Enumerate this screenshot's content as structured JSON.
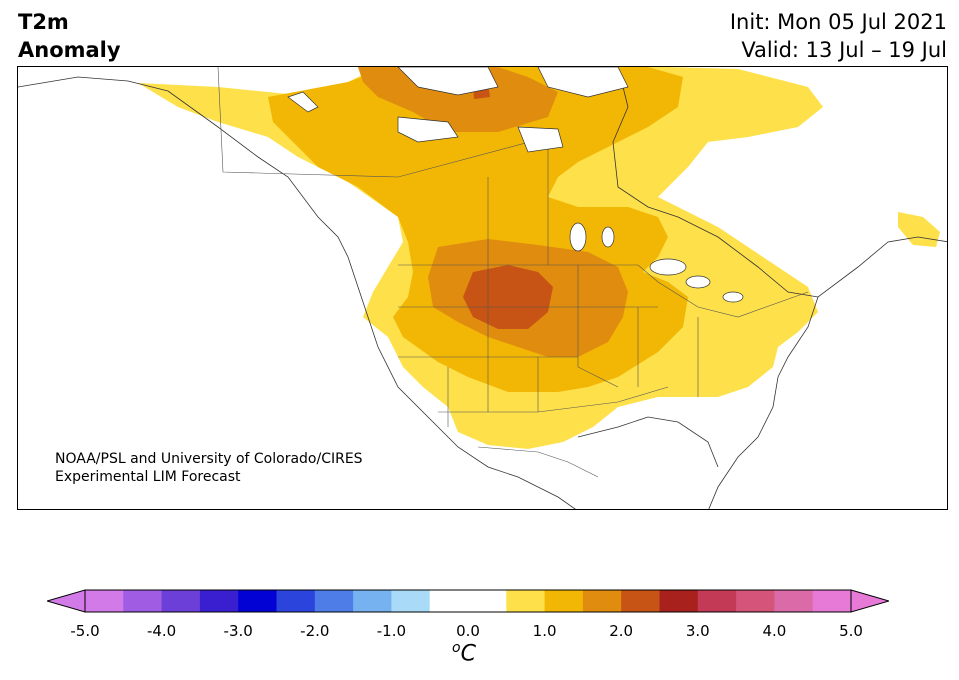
{
  "header": {
    "title_line1": "T2m",
    "title_line2": "Anomaly",
    "init": "Init: Mon 05 Jul 2021",
    "valid": "Valid: 13 Jul – 19 Jul"
  },
  "credit": {
    "line1": "NOAA/PSL and University of Colorado/CIRES",
    "line2": "Experimental LIM Forecast"
  },
  "colorbar": {
    "unit": "C",
    "unit_sup": "o",
    "ticks": [
      "-5.0",
      "-4.0",
      "-3.0",
      "-2.0",
      "-1.0",
      "0.0",
      "1.0",
      "2.0",
      "3.0",
      "4.0",
      "5.0"
    ],
    "colors": [
      "#d17ae8",
      "#a05ce3",
      "#6b3fd8",
      "#3a1fd1",
      "#0202d4",
      "#2b44dc",
      "#4e7de8",
      "#77b2f0",
      "#a9dbf8",
      "#ffffff",
      "#ffffff",
      "#fde04a",
      "#f2b705",
      "#e08c0f",
      "#c75414",
      "#a8211c",
      "#c33a56",
      "#d45579",
      "#da6aa8",
      "#e67ad6"
    ],
    "under_color": "#d17ae8",
    "over_color": "#e67ad6"
  },
  "map": {
    "anomaly_colors": {
      "0.5": "#fde04a",
      "1.0": "#f2b705",
      "1.5": "#e08c0f",
      "2.0": "#c75414"
    }
  }
}
